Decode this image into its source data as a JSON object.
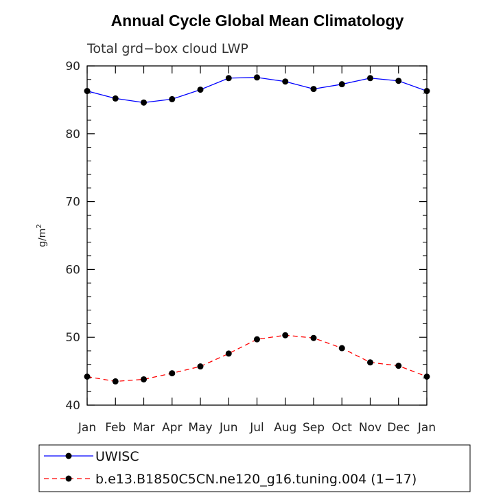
{
  "chart_data": {
    "type": "line",
    "title": "Annual Cycle Global Mean Climatology",
    "subtitle": "Total grd−box cloud LWP",
    "ylabel": "g/m",
    "ylabel_superscript": "2",
    "xlabel": "",
    "categories": [
      "Jan",
      "Feb",
      "Mar",
      "Apr",
      "May",
      "Jun",
      "Jul",
      "Aug",
      "Sep",
      "Oct",
      "Nov",
      "Dec",
      "Jan"
    ],
    "ylim": [
      40,
      90
    ],
    "yticks": [
      40,
      50,
      60,
      70,
      80,
      90
    ],
    "series": [
      {
        "name": "UWISC",
        "color": "#0000ff",
        "dash": "solid",
        "marker": "circle",
        "values": [
          86.3,
          85.2,
          84.6,
          85.1,
          86.5,
          88.2,
          88.3,
          87.7,
          86.6,
          87.3,
          88.2,
          87.8,
          86.3
        ]
      },
      {
        "name": "b.e13.B1850C5CN.ne120_g16.tuning.004 (1−17)",
        "color": "#ff0000",
        "dash": "dashed",
        "marker": "circle",
        "values": [
          44.2,
          43.5,
          43.8,
          44.7,
          45.7,
          47.6,
          49.7,
          50.3,
          49.9,
          48.4,
          46.3,
          45.8,
          44.2
        ]
      }
    ],
    "legend_placement": "bottom"
  }
}
